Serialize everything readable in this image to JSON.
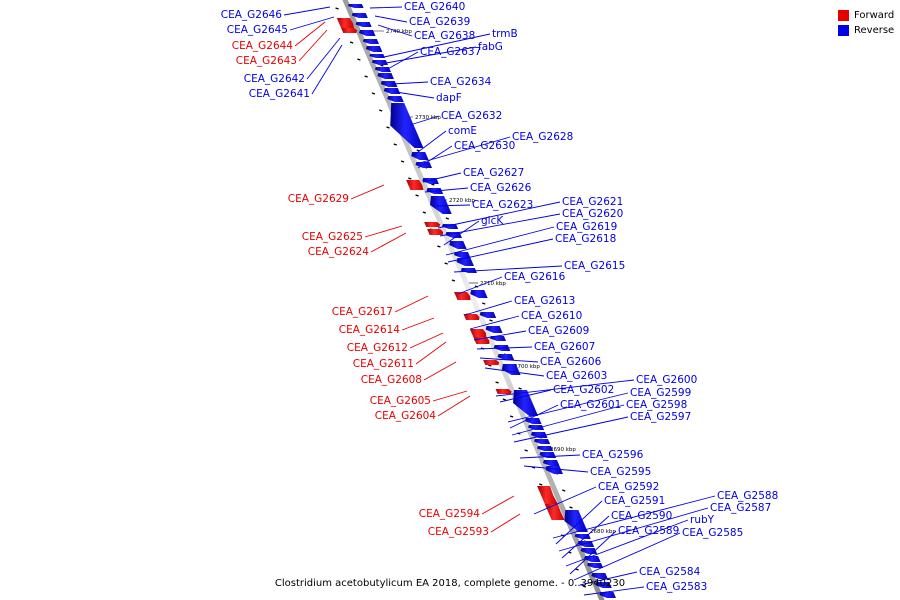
{
  "legend": {
    "forward": {
      "label": "Forward",
      "color": "#e60000"
    },
    "reverse": {
      "label": "Reverse",
      "color": "#0000e6"
    }
  },
  "caption": "Clostridium acetobutylicum EA 2018, complete genome. - 0..3940230",
  "scale_labels": [
    "2740 kbp",
    "2730 kbp",
    "2720 kbp",
    "2710 kbp",
    "2700 kbp",
    "2690 kbp",
    "2680 kbp"
  ],
  "genes_reverse": [
    "CEA_G2646",
    "CEA_G2645",
    "CEA_G2642",
    "CEA_G2641",
    "CEA_G2640",
    "CEA_G2639",
    "CEA_G2638",
    "trmB",
    "fabG",
    "CEA_G2637",
    "CEA_G2634",
    "dapF",
    "CEA_G2632",
    "comE",
    "CEA_G2628",
    "CEA_G2630",
    "CEA_G2627",
    "CEA_G2626",
    "CEA_G2623",
    "CEA_G2621",
    "CEA_G2620",
    "glcK",
    "CEA_G2619",
    "CEA_G2618",
    "CEA_G2615",
    "CEA_G2616",
    "CEA_G2613",
    "CEA_G2610",
    "CEA_G2609",
    "CEA_G2607",
    "CEA_G2606",
    "CEA_G2603",
    "CEA_G2600",
    "CEA_G2602",
    "CEA_G2599",
    "CEA_G2601",
    "CEA_G2598",
    "CEA_G2597",
    "CEA_G2596",
    "CEA_G2595",
    "CEA_G2592",
    "CEA_G2588",
    "CEA_G2591",
    "CEA_G2587",
    "CEA_G2590",
    "rubY",
    "CEA_G2589",
    "CEA_G2585",
    "CEA_G2584",
    "CEA_G2583"
  ],
  "genes_forward": [
    "CEA_G2644",
    "CEA_G2643",
    "CEA_G2629",
    "CEA_G2625",
    "CEA_G2624",
    "CEA_G2617",
    "CEA_G2614",
    "CEA_G2612",
    "CEA_G2611",
    "CEA_G2608",
    "CEA_G2605",
    "CEA_G2604",
    "CEA_G2594",
    "CEA_G2593"
  ]
}
